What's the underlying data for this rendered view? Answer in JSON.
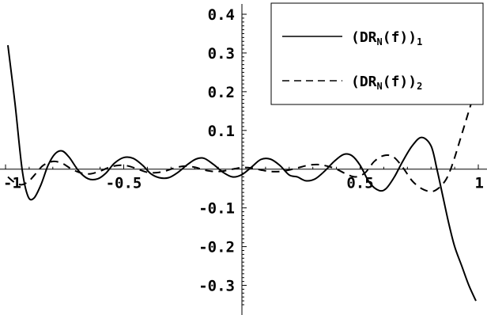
{
  "chart_data": {
    "type": "line",
    "title": "",
    "xlabel": "",
    "ylabel": "",
    "xlim": [
      -1.0,
      1.0
    ],
    "ylim": [
      -0.35,
      0.4
    ],
    "x_ticks": [
      {
        "value": -1,
        "label": "-1"
      },
      {
        "value": -0.5,
        "label": "-0.5"
      },
      {
        "value": 0.5,
        "label": "0.5"
      },
      {
        "value": 1,
        "label": "1"
      }
    ],
    "y_ticks": [
      {
        "value": 0.4,
        "label": "0.4"
      },
      {
        "value": 0.3,
        "label": "0.3"
      },
      {
        "value": 0.2,
        "label": "0.2"
      },
      {
        "value": 0.1,
        "label": "0.1"
      },
      {
        "value": -0.1,
        "label": "-0.1"
      },
      {
        "value": -0.2,
        "label": "-0.2"
      },
      {
        "value": -0.3,
        "label": "-0.3"
      }
    ],
    "legend_position": "top-right",
    "grid": false,
    "series": [
      {
        "legend_base": "(DR",
        "legend_sub1": "N",
        "legend_mid": "(f))",
        "legend_sub2": "1",
        "style": "solid",
        "color": "#000000",
        "x": [
          -0.99,
          -0.96,
          -0.93,
          -0.905,
          -0.88,
          -0.85,
          -0.82,
          -0.79,
          -0.76,
          -0.73,
          -0.69,
          -0.65,
          -0.61,
          -0.575,
          -0.54,
          -0.5,
          -0.46,
          -0.42,
          -0.385,
          -0.35,
          -0.31,
          -0.27,
          -0.23,
          -0.195,
          -0.16,
          -0.12,
          -0.08,
          -0.04,
          0.0,
          0.04,
          0.08,
          0.12,
          0.16,
          0.2,
          0.235,
          0.27,
          0.31,
          0.35,
          0.39,
          0.43,
          0.465,
          0.5,
          0.54,
          0.58,
          0.61,
          0.645,
          0.68,
          0.72,
          0.76,
          0.8,
          0.825,
          0.85,
          0.875,
          0.9,
          0.93,
          0.96,
          0.99
        ],
        "y": [
          0.32,
          0.17,
          0.0,
          -0.07,
          -0.075,
          -0.04,
          0.01,
          0.04,
          0.047,
          0.03,
          -0.005,
          -0.025,
          -0.025,
          -0.01,
          0.015,
          0.03,
          0.028,
          0.01,
          -0.012,
          -0.022,
          -0.022,
          -0.008,
          0.012,
          0.026,
          0.028,
          0.012,
          -0.008,
          -0.02,
          -0.014,
          0.005,
          0.025,
          0.026,
          0.01,
          -0.015,
          -0.02,
          -0.03,
          -0.025,
          -0.005,
          0.02,
          0.038,
          0.035,
          0.01,
          -0.035,
          -0.055,
          -0.05,
          -0.02,
          0.02,
          0.06,
          0.082,
          0.06,
          0.0,
          -0.07,
          -0.14,
          -0.2,
          -0.25,
          -0.3,
          -0.34
        ]
      },
      {
        "legend_base": "(DR",
        "legend_sub1": "N",
        "legend_mid": "(f))",
        "legend_sub2": "2",
        "style": "dashed",
        "color": "#000000",
        "x": [
          -0.99,
          -0.96,
          -0.93,
          -0.9,
          -0.87,
          -0.84,
          -0.8,
          -0.76,
          -0.72,
          -0.68,
          -0.64,
          -0.6,
          -0.56,
          -0.52,
          -0.48,
          -0.44,
          -0.4,
          -0.36,
          -0.32,
          -0.28,
          -0.24,
          -0.2,
          -0.16,
          -0.12,
          -0.08,
          -0.04,
          0.0,
          0.04,
          0.08,
          0.12,
          0.16,
          0.2,
          0.24,
          0.28,
          0.32,
          0.36,
          0.4,
          0.44,
          0.48,
          0.52,
          0.56,
          0.6,
          0.64,
          0.68,
          0.72,
          0.76,
          0.8,
          0.83,
          0.86,
          0.88,
          0.9,
          0.92,
          0.94,
          0.96,
          0.98,
          0.99
        ],
        "y": [
          -0.02,
          -0.035,
          -0.04,
          -0.03,
          -0.01,
          0.01,
          0.02,
          0.015,
          0.0,
          -0.01,
          -0.012,
          -0.005,
          0.005,
          0.01,
          0.008,
          0.0,
          -0.008,
          -0.009,
          -0.004,
          0.004,
          0.008,
          0.005,
          -0.002,
          -0.006,
          -0.005,
          0.0,
          0.004,
          0.003,
          -0.002,
          -0.006,
          -0.006,
          -0.002,
          0.004,
          0.01,
          0.012,
          0.008,
          0.0,
          -0.012,
          -0.02,
          -0.01,
          0.02,
          0.035,
          0.032,
          0.005,
          -0.03,
          -0.05,
          -0.058,
          -0.05,
          -0.03,
          -0.005,
          0.03,
          0.07,
          0.11,
          0.15,
          0.19,
          0.21
        ]
      }
    ]
  }
}
